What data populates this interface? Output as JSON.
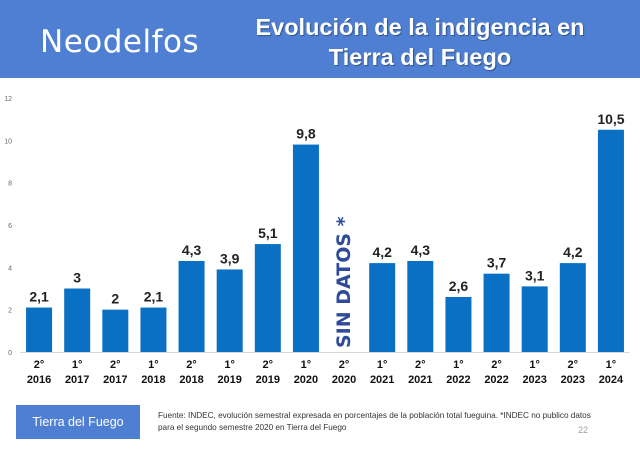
{
  "header": {
    "brand": "Neodelfos",
    "title_line1": "Evolución de la indigencia en",
    "title_line2": "Tierra del Fuego"
  },
  "chart_data": {
    "type": "bar",
    "categories": [
      {
        "sem": "2°",
        "year": "2016"
      },
      {
        "sem": "1°",
        "year": "2017"
      },
      {
        "sem": "2°",
        "year": "2017"
      },
      {
        "sem": "1°",
        "year": "2018"
      },
      {
        "sem": "2°",
        "year": "2018"
      },
      {
        "sem": "1°",
        "year": "2019"
      },
      {
        "sem": "2°",
        "year": "2019"
      },
      {
        "sem": "1°",
        "year": "2020"
      },
      {
        "sem": "2°",
        "year": "2020"
      },
      {
        "sem": "1°",
        "year": "2021"
      },
      {
        "sem": "2°",
        "year": "2021"
      },
      {
        "sem": "1°",
        "year": "2022"
      },
      {
        "sem": "2°",
        "year": "2022"
      },
      {
        "sem": "1°",
        "year": "2023"
      },
      {
        "sem": "2°",
        "year": "2023"
      },
      {
        "sem": "1°",
        "year": "2024"
      }
    ],
    "values": [
      2.1,
      3,
      2,
      2.1,
      4.3,
      3.9,
      5.1,
      9.8,
      null,
      4.2,
      4.3,
      2.6,
      3.7,
      3.1,
      4.2,
      10.5
    ],
    "value_labels": [
      "2,1",
      "3",
      "2",
      "2,1",
      "4,3",
      "3,9",
      "5,1",
      "9,8",
      "",
      "4,2",
      "4,3",
      "2,6",
      "3,7",
      "3,1",
      "4,2",
      "10,5"
    ],
    "missing_label": "SIN DATOS *",
    "yticks": [
      0,
      2,
      4,
      6,
      8,
      10,
      12
    ],
    "ylim": [
      0,
      12
    ],
    "grid": false,
    "bar_color": "#0a70c4",
    "missing_color": "#2e4a9a"
  },
  "legend_label": "Tierra del Fuego",
  "source_note": "Fuente: INDEC, evolución semestral expresada en porcentajes de la población total fueguina. *INDEC no publico datos para el segundo semestre 2020 en Tierra del Fuego",
  "page_number": "22",
  "colors": {
    "header_bg": "#4f7fd3",
    "bar": "#0a70c4"
  }
}
